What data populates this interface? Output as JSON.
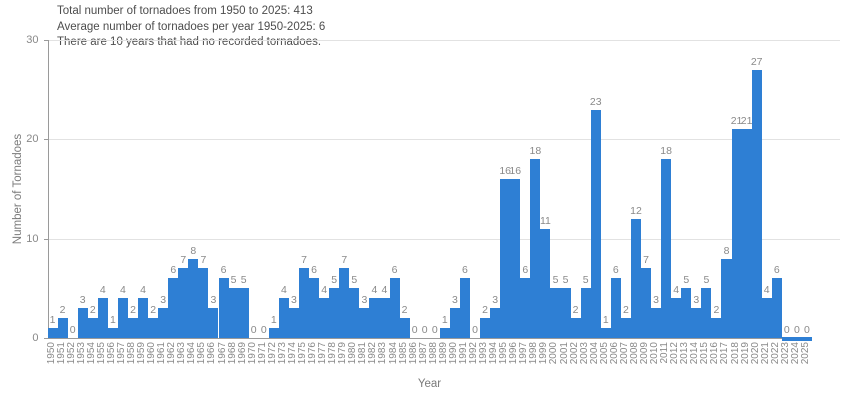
{
  "chart_data": {
    "type": "bar",
    "title_lines": [
      "Total number of tornadoes from 1950 to 2025: 413",
      "Average number of tornadoes per year 1950-2025: 6",
      "There are 10 years that had no recorded tornadoes."
    ],
    "xlabel": "Year",
    "ylabel": "Number of Tornadoes",
    "ylim": [
      0,
      30
    ],
    "yticks": [
      0,
      10,
      20,
      30
    ],
    "grid": "horizontal-light",
    "legend": "none",
    "bar_color": "#2e7fd4",
    "categories": [
      1950,
      1951,
      1952,
      1953,
      1954,
      1955,
      1956,
      1957,
      1958,
      1959,
      1960,
      1961,
      1962,
      1963,
      1964,
      1965,
      1966,
      1967,
      1968,
      1969,
      1970,
      1971,
      1972,
      1973,
      1974,
      1975,
      1976,
      1977,
      1978,
      1979,
      1980,
      1981,
      1982,
      1983,
      1984,
      1985,
      1986,
      1987,
      1988,
      1989,
      1990,
      1991,
      1992,
      1993,
      1994,
      1995,
      1996,
      1997,
      1998,
      1999,
      2000,
      2001,
      2002,
      2003,
      2004,
      2005,
      2006,
      2007,
      2008,
      2009,
      2010,
      2011,
      2012,
      2013,
      2014,
      2015,
      2016,
      2017,
      2018,
      2019,
      2020,
      2021,
      2022,
      2023,
      2024,
      2025
    ],
    "values": [
      1,
      2,
      0,
      3,
      2,
      4,
      1,
      4,
      2,
      4,
      2,
      3,
      6,
      7,
      8,
      7,
      3,
      6,
      5,
      5,
      0,
      0,
      1,
      4,
      3,
      7,
      6,
      4,
      5,
      7,
      5,
      3,
      4,
      4,
      6,
      2,
      0,
      0,
      0,
      1,
      3,
      6,
      0,
      2,
      3,
      16,
      16,
      6,
      18,
      11,
      5,
      5,
      2,
      5,
      23,
      1,
      6,
      2,
      12,
      7,
      3,
      18,
      4,
      5,
      3,
      5,
      2,
      8,
      21,
      21,
      27,
      4,
      6,
      0,
      0,
      0
    ],
    "bar_value_labels_shown": true
  },
  "colors": {
    "bar": "#2e7fd4",
    "grid": "#e2e2e2",
    "axis": "#9a9a9a",
    "tick_text": "#8a8a8a",
    "title_text": "#4d4d4d",
    "background": "#ffffff"
  }
}
